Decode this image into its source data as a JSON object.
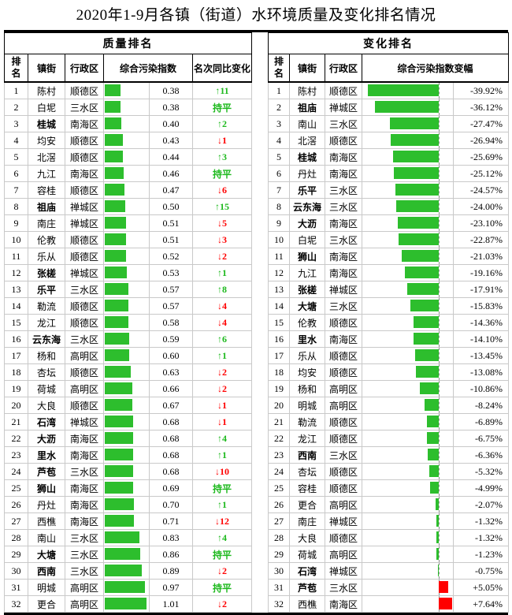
{
  "title": "2020年1-9月各镇（街道）水环境质量及变化排名情况",
  "colors": {
    "bar_green": "#2DBE2D",
    "bar_red": "#FF0000",
    "text_green": "#1DB91D",
    "text_red": "#FF0000",
    "grid_gray": "#c9c9c9",
    "axis_gray": "#8f8f8f"
  },
  "quality_table": {
    "group_header": "质量排名",
    "columns": {
      "rank": "排名",
      "town": "镇街",
      "district": "行政区",
      "index": "综合污染指数",
      "change": "名次同比变化"
    },
    "max_index": 1.01,
    "rows": [
      {
        "rank": "1",
        "town": "陈村",
        "district": "顺德区",
        "bold": false,
        "index": "0.38",
        "index_value": 0.38,
        "change": "↑11",
        "change_dir": "up"
      },
      {
        "rank": "2",
        "town": "白坭",
        "district": "三水区",
        "bold": false,
        "index": "0.38",
        "index_value": 0.38,
        "change": "持平",
        "change_dir": "flat"
      },
      {
        "rank": "3",
        "town": "桂城",
        "district": "南海区",
        "bold": true,
        "index": "0.40",
        "index_value": 0.4,
        "change": "↑2",
        "change_dir": "up"
      },
      {
        "rank": "4",
        "town": "均安",
        "district": "顺德区",
        "bold": false,
        "index": "0.43",
        "index_value": 0.43,
        "change": "↓1",
        "change_dir": "down"
      },
      {
        "rank": "5",
        "town": "北滘",
        "district": "顺德区",
        "bold": false,
        "index": "0.44",
        "index_value": 0.44,
        "change": "↑3",
        "change_dir": "up"
      },
      {
        "rank": "6",
        "town": "九江",
        "district": "南海区",
        "bold": false,
        "index": "0.46",
        "index_value": 0.46,
        "change": "持平",
        "change_dir": "flat"
      },
      {
        "rank": "7",
        "town": "容桂",
        "district": "顺德区",
        "bold": false,
        "index": "0.47",
        "index_value": 0.47,
        "change": "↓6",
        "change_dir": "down"
      },
      {
        "rank": "8",
        "town": "祖庙",
        "district": "禅城区",
        "bold": true,
        "index": "0.50",
        "index_value": 0.5,
        "change": "↑15",
        "change_dir": "up"
      },
      {
        "rank": "9",
        "town": "南庄",
        "district": "禅城区",
        "bold": false,
        "index": "0.51",
        "index_value": 0.51,
        "change": "↓5",
        "change_dir": "down"
      },
      {
        "rank": "10",
        "town": "伦教",
        "district": "顺德区",
        "bold": false,
        "index": "0.51",
        "index_value": 0.51,
        "change": "↓3",
        "change_dir": "down"
      },
      {
        "rank": "11",
        "town": "乐从",
        "district": "顺德区",
        "bold": false,
        "index": "0.52",
        "index_value": 0.52,
        "change": "↓2",
        "change_dir": "down"
      },
      {
        "rank": "12",
        "town": "张槎",
        "district": "禅城区",
        "bold": true,
        "index": "0.53",
        "index_value": 0.53,
        "change": "↑1",
        "change_dir": "up"
      },
      {
        "rank": "13",
        "town": "乐平",
        "district": "三水区",
        "bold": true,
        "index": "0.57",
        "index_value": 0.57,
        "change": "↑8",
        "change_dir": "up"
      },
      {
        "rank": "14",
        "town": "勒流",
        "district": "顺德区",
        "bold": false,
        "index": "0.57",
        "index_value": 0.57,
        "change": "↓4",
        "change_dir": "down"
      },
      {
        "rank": "15",
        "town": "龙江",
        "district": "顺德区",
        "bold": false,
        "index": "0.58",
        "index_value": 0.58,
        "change": "↓4",
        "change_dir": "down"
      },
      {
        "rank": "16",
        "town": "云东海",
        "district": "三水区",
        "bold": true,
        "index": "0.59",
        "index_value": 0.59,
        "change": "↑6",
        "change_dir": "up"
      },
      {
        "rank": "17",
        "town": "杨和",
        "district": "高明区",
        "bold": false,
        "index": "0.60",
        "index_value": 0.6,
        "change": "↑1",
        "change_dir": "up"
      },
      {
        "rank": "18",
        "town": "杏坛",
        "district": "顺德区",
        "bold": false,
        "index": "0.63",
        "index_value": 0.63,
        "change": "↓2",
        "change_dir": "down"
      },
      {
        "rank": "19",
        "town": "荷城",
        "district": "高明区",
        "bold": false,
        "index": "0.66",
        "index_value": 0.66,
        "change": "↓2",
        "change_dir": "down"
      },
      {
        "rank": "20",
        "town": "大良",
        "district": "顺德区",
        "bold": false,
        "index": "0.67",
        "index_value": 0.67,
        "change": "↓1",
        "change_dir": "down"
      },
      {
        "rank": "21",
        "town": "石湾",
        "district": "禅城区",
        "bold": true,
        "index": "0.68",
        "index_value": 0.68,
        "change": "↓1",
        "change_dir": "down"
      },
      {
        "rank": "22",
        "town": "大沥",
        "district": "南海区",
        "bold": true,
        "index": "0.68",
        "index_value": 0.68,
        "change": "↑4",
        "change_dir": "up"
      },
      {
        "rank": "23",
        "town": "里水",
        "district": "南海区",
        "bold": true,
        "index": "0.68",
        "index_value": 0.68,
        "change": "↑1",
        "change_dir": "up"
      },
      {
        "rank": "24",
        "town": "芦苞",
        "district": "三水区",
        "bold": true,
        "index": "0.68",
        "index_value": 0.68,
        "change": "↓10",
        "change_dir": "down"
      },
      {
        "rank": "25",
        "town": "狮山",
        "district": "南海区",
        "bold": true,
        "index": "0.69",
        "index_value": 0.69,
        "change": "持平",
        "change_dir": "flat"
      },
      {
        "rank": "26",
        "town": "丹灶",
        "district": "南海区",
        "bold": false,
        "index": "0.70",
        "index_value": 0.7,
        "change": "↑1",
        "change_dir": "up"
      },
      {
        "rank": "27",
        "town": "西樵",
        "district": "南海区",
        "bold": false,
        "index": "0.71",
        "index_value": 0.71,
        "change": "↓12",
        "change_dir": "down"
      },
      {
        "rank": "28",
        "town": "南山",
        "district": "三水区",
        "bold": false,
        "index": "0.83",
        "index_value": 0.83,
        "change": "↑4",
        "change_dir": "up"
      },
      {
        "rank": "29",
        "town": "大塘",
        "district": "三水区",
        "bold": true,
        "index": "0.86",
        "index_value": 0.86,
        "change": "持平",
        "change_dir": "flat"
      },
      {
        "rank": "30",
        "town": "西南",
        "district": "三水区",
        "bold": true,
        "index": "0.89",
        "index_value": 0.89,
        "change": "↓2",
        "change_dir": "down"
      },
      {
        "rank": "31",
        "town": "明城",
        "district": "高明区",
        "bold": false,
        "index": "0.97",
        "index_value": 0.97,
        "change": "持平",
        "change_dir": "flat"
      },
      {
        "rank": "32",
        "town": "更合",
        "district": "高明区",
        "bold": false,
        "index": "1.01",
        "index_value": 1.01,
        "change": "↓2",
        "change_dir": "down"
      }
    ]
  },
  "change_table": {
    "group_header": "变化排名",
    "columns": {
      "rank": "排名",
      "town": "镇街",
      "district": "行政区",
      "delta": "综合污染指数变幅"
    },
    "axis_percent": 84.5,
    "max_abs_delta": 39.92,
    "rows": [
      {
        "rank": "1",
        "town": "陈村",
        "district": "顺德区",
        "bold": false,
        "delta": "-39.92%",
        "delta_value": -39.92
      },
      {
        "rank": "2",
        "town": "祖庙",
        "district": "禅城区",
        "bold": true,
        "delta": "-36.12%",
        "delta_value": -36.12
      },
      {
        "rank": "3",
        "town": "南山",
        "district": "三水区",
        "bold": false,
        "delta": "-27.47%",
        "delta_value": -27.47
      },
      {
        "rank": "4",
        "town": "北滘",
        "district": "顺德区",
        "bold": false,
        "delta": "-26.94%",
        "delta_value": -26.94
      },
      {
        "rank": "5",
        "town": "桂城",
        "district": "南海区",
        "bold": true,
        "delta": "-25.69%",
        "delta_value": -25.69
      },
      {
        "rank": "6",
        "town": "丹灶",
        "district": "南海区",
        "bold": false,
        "delta": "-25.12%",
        "delta_value": -25.12
      },
      {
        "rank": "7",
        "town": "乐平",
        "district": "三水区",
        "bold": true,
        "delta": "-24.57%",
        "delta_value": -24.57
      },
      {
        "rank": "8",
        "town": "云东海",
        "district": "三水区",
        "bold": true,
        "delta": "-24.00%",
        "delta_value": -24.0
      },
      {
        "rank": "9",
        "town": "大沥",
        "district": "南海区",
        "bold": true,
        "delta": "-23.10%",
        "delta_value": -23.1
      },
      {
        "rank": "10",
        "town": "白坭",
        "district": "三水区",
        "bold": false,
        "delta": "-22.87%",
        "delta_value": -22.87
      },
      {
        "rank": "11",
        "town": "狮山",
        "district": "南海区",
        "bold": true,
        "delta": "-21.03%",
        "delta_value": -21.03
      },
      {
        "rank": "12",
        "town": "九江",
        "district": "南海区",
        "bold": false,
        "delta": "-19.16%",
        "delta_value": -19.16
      },
      {
        "rank": "13",
        "town": "张槎",
        "district": "禅城区",
        "bold": true,
        "delta": "-17.91%",
        "delta_value": -17.91
      },
      {
        "rank": "14",
        "town": "大塘",
        "district": "三水区",
        "bold": true,
        "delta": "-15.83%",
        "delta_value": -15.83
      },
      {
        "rank": "15",
        "town": "伦教",
        "district": "顺德区",
        "bold": false,
        "delta": "-14.36%",
        "delta_value": -14.36
      },
      {
        "rank": "16",
        "town": "里水",
        "district": "南海区",
        "bold": true,
        "delta": "-14.10%",
        "delta_value": -14.1
      },
      {
        "rank": "17",
        "town": "乐从",
        "district": "顺德区",
        "bold": false,
        "delta": "-13.45%",
        "delta_value": -13.45
      },
      {
        "rank": "18",
        "town": "均安",
        "district": "顺德区",
        "bold": false,
        "delta": "-13.08%",
        "delta_value": -13.08
      },
      {
        "rank": "19",
        "town": "杨和",
        "district": "高明区",
        "bold": false,
        "delta": "-10.86%",
        "delta_value": -10.86
      },
      {
        "rank": "20",
        "town": "明城",
        "district": "高明区",
        "bold": false,
        "delta": "-8.24%",
        "delta_value": -8.24
      },
      {
        "rank": "21",
        "town": "勒流",
        "district": "顺德区",
        "bold": false,
        "delta": "-6.89%",
        "delta_value": -6.89
      },
      {
        "rank": "22",
        "town": "龙江",
        "district": "顺德区",
        "bold": false,
        "delta": "-6.75%",
        "delta_value": -6.75
      },
      {
        "rank": "23",
        "town": "西南",
        "district": "三水区",
        "bold": true,
        "delta": "-6.36%",
        "delta_value": -6.36
      },
      {
        "rank": "24",
        "town": "杏坛",
        "district": "顺德区",
        "bold": false,
        "delta": "-5.32%",
        "delta_value": -5.32
      },
      {
        "rank": "25",
        "town": "容桂",
        "district": "顺德区",
        "bold": false,
        "delta": "-4.99%",
        "delta_value": -4.99
      },
      {
        "rank": "26",
        "town": "更合",
        "district": "高明区",
        "bold": false,
        "delta": "-2.07%",
        "delta_value": -2.07
      },
      {
        "rank": "27",
        "town": "南庄",
        "district": "禅城区",
        "bold": false,
        "delta": "-1.32%",
        "delta_value": -1.32
      },
      {
        "rank": "28",
        "town": "大良",
        "district": "顺德区",
        "bold": false,
        "delta": "-1.32%",
        "delta_value": -1.32
      },
      {
        "rank": "29",
        "town": "荷城",
        "district": "高明区",
        "bold": false,
        "delta": "-1.23%",
        "delta_value": -1.23
      },
      {
        "rank": "30",
        "town": "石湾",
        "district": "禅城区",
        "bold": true,
        "delta": "-0.75%",
        "delta_value": -0.75
      },
      {
        "rank": "31",
        "town": "芦苞",
        "district": "三水区",
        "bold": true,
        "delta": "+5.05%",
        "delta_value": 5.05
      },
      {
        "rank": "32",
        "town": "西樵",
        "district": "南海区",
        "bold": false,
        "delta": "+7.64%",
        "delta_value": 7.64
      }
    ]
  }
}
